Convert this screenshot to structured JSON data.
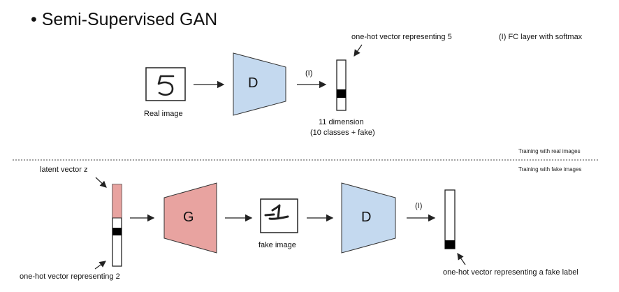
{
  "title": "• Semi-Supervised GAN",
  "top": {
    "note_onehot5": "one-hot vector representing 5",
    "note_fc": "(I) FC layer with softmax",
    "real_image_caption": "Real image",
    "real_digit": "5",
    "disc_label": "D",
    "arrow_label": "(I)",
    "dim_line1": "11 dimension",
    "dim_line2": "(10 classes + fake)",
    "section_note": "Training with real images"
  },
  "bottom": {
    "section_note": "Training with fake images",
    "latent_label": "latent vector z",
    "onehot2_label": "one-hot vector representing 2",
    "gen_label": "G",
    "fake_image_caption": "fake image",
    "disc_label": "D",
    "arrow_label": "(I)",
    "onehot_fake_label": "one-hot vector representing a fake label"
  },
  "colors": {
    "discriminator": "#c4d9ef",
    "generator": "#e8a3a0",
    "latent_fill": "#e8a3a0",
    "active_cell": "#000000"
  }
}
